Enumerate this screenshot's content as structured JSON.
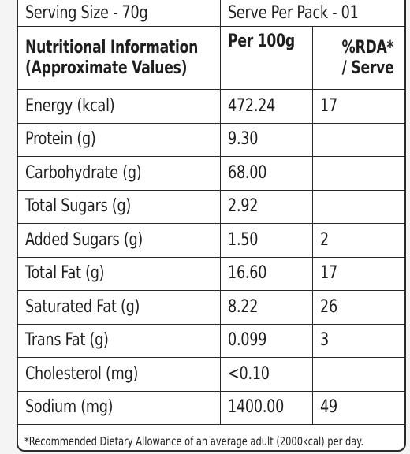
{
  "label": {
    "serving_size": "Serving Size - 70g",
    "serve_per_pack": "Serve Per Pack - 01",
    "header": {
      "nutrient_line1": "Nutritional Information",
      "nutrient_line2": "(Approximate Values)",
      "per100g": "Per 100g",
      "rda_line1": "%RDA*",
      "rda_line2": "/ Serve"
    },
    "rows": [
      {
        "name": "Energy (kcal)",
        "per100g": "472.24",
        "rda": "17"
      },
      {
        "name": "Protein (g)",
        "per100g": "9.30",
        "rda": ""
      },
      {
        "name": "Carbohydrate (g)",
        "per100g": "68.00",
        "rda": ""
      },
      {
        "name": "Total Sugars (g)",
        "per100g": "2.92",
        "rda": ""
      },
      {
        "name": "Added Sugars (g)",
        "per100g": "1.50",
        "rda": "2"
      },
      {
        "name": "Total Fat (g)",
        "per100g": "16.60",
        "rda": "17"
      },
      {
        "name": "Saturated Fat (g)",
        "per100g": "8.22",
        "rda": "26"
      },
      {
        "name": "Trans Fat (g)",
        "per100g": "0.099",
        "rda": "3"
      },
      {
        "name": "Cholesterol (mg)",
        "per100g": "<0.10",
        "rda": ""
      },
      {
        "name": "Sodium (mg)",
        "per100g": "1400.00",
        "rda": "49"
      }
    ],
    "footnote": "*Recommended Dietary Allowance of an average adult (2000kcal) per day."
  }
}
